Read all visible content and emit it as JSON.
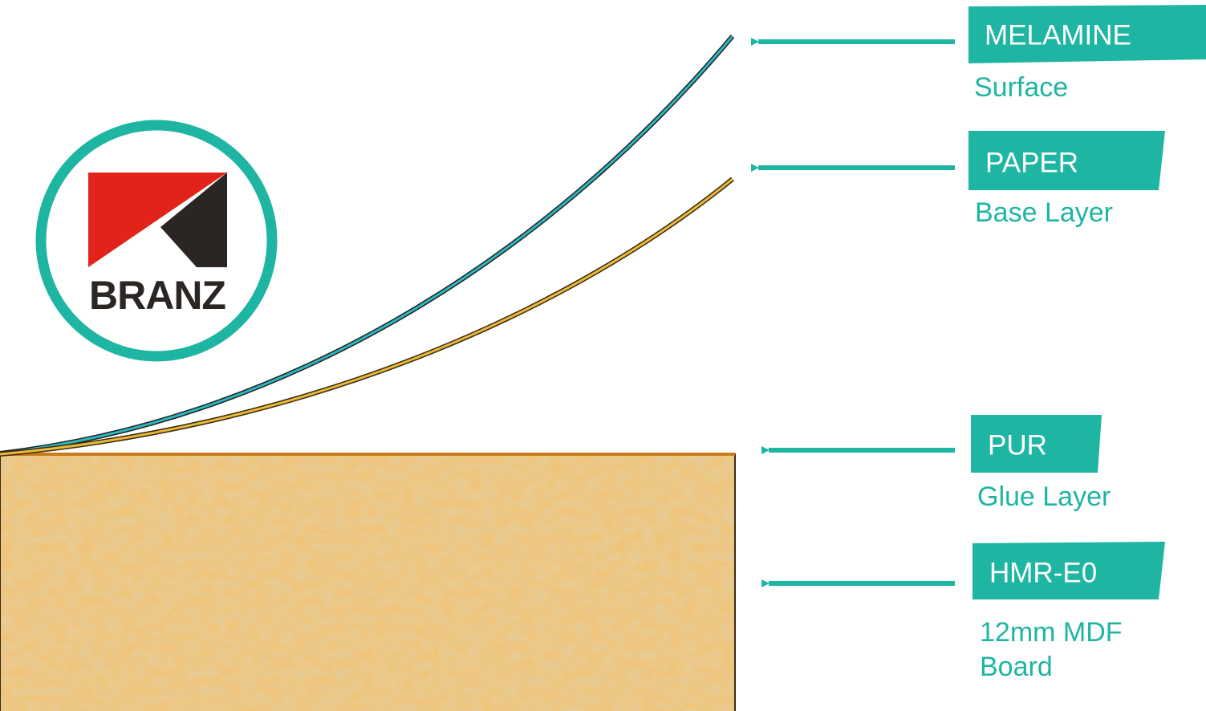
{
  "logo": {
    "text": "BRANZ"
  },
  "layers": [
    {
      "label": "MELAMINE",
      "description": [
        "Surface"
      ]
    },
    {
      "label": "PAPER",
      "description": [
        "Base Layer"
      ]
    },
    {
      "label": "PUR",
      "description": [
        "Glue Layer"
      ]
    },
    {
      "label": "HMR-E0",
      "description": [
        "12mm MDF",
        "Board"
      ]
    }
  ]
}
